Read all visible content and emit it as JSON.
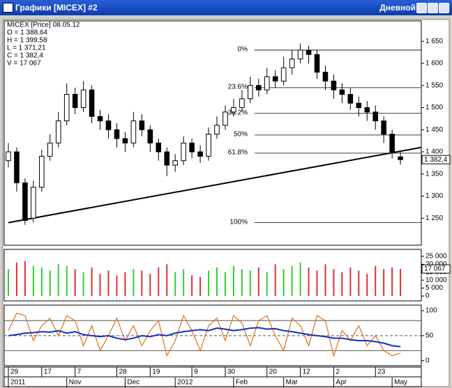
{
  "window": {
    "title": "Графики [MICEX] #2",
    "timeframe": "Дневной"
  },
  "chart_data": [
    {
      "type": "candlestick",
      "info": [
        "MICEX [Price] 08.05.12",
        "O = 1 388,64",
        "H = 1 399,58",
        "L = 1 371,21",
        "C = 1 382,4",
        "V = 17 067"
      ],
      "open": [
        1380,
        1400,
        1330,
        1250,
        1320,
        1390,
        1420,
        1470,
        1530,
        1500,
        1540,
        1480,
        1470,
        1450,
        1430,
        1420,
        1470,
        1450,
        1420,
        1400,
        1370,
        1380,
        1420,
        1400,
        1390,
        1440,
        1460,
        1490,
        1500,
        1520,
        1550,
        1540,
        1570,
        1560,
        1590,
        1610,
        1630,
        1620,
        1580,
        1560,
        1540,
        1530,
        1510,
        1500,
        1490,
        1470,
        1440,
        1388.64
      ],
      "high": [
        1420,
        1410,
        1340,
        1335,
        1405,
        1440,
        1490,
        1555,
        1545,
        1560,
        1550,
        1495,
        1485,
        1465,
        1445,
        1490,
        1485,
        1460,
        1430,
        1410,
        1395,
        1435,
        1430,
        1415,
        1455,
        1480,
        1505,
        1520,
        1540,
        1570,
        1565,
        1590,
        1585,
        1615,
        1630,
        1645,
        1640,
        1630,
        1595,
        1575,
        1555,
        1545,
        1525,
        1515,
        1505,
        1480,
        1450,
        1399.58
      ],
      "low": [
        1365,
        1310,
        1235,
        1240,
        1310,
        1380,
        1410,
        1460,
        1485,
        1490,
        1465,
        1450,
        1430,
        1410,
        1400,
        1410,
        1435,
        1400,
        1380,
        1345,
        1355,
        1370,
        1385,
        1375,
        1380,
        1430,
        1450,
        1480,
        1490,
        1510,
        1525,
        1530,
        1545,
        1550,
        1575,
        1600,
        1600,
        1565,
        1540,
        1520,
        1510,
        1495,
        1480,
        1470,
        1450,
        1420,
        1385,
        1371.21
      ],
      "close": [
        1400,
        1330,
        1245,
        1320,
        1390,
        1420,
        1470,
        1530,
        1500,
        1540,
        1480,
        1470,
        1450,
        1430,
        1420,
        1470,
        1450,
        1420,
        1400,
        1370,
        1380,
        1420,
        1400,
        1390,
        1440,
        1460,
        1490,
        1500,
        1520,
        1550,
        1540,
        1570,
        1560,
        1590,
        1610,
        1630,
        1620,
        1580,
        1560,
        1540,
        1530,
        1510,
        1500,
        1490,
        1470,
        1440,
        1400,
        1382.4
      ],
      "up_color": "#ffffff",
      "down_color": "#000000",
      "xlim": [
        -0.5,
        49.5
      ],
      "ylim": [
        1189,
        1696
      ],
      "yticks": [
        {
          "value": 1650,
          "label": "1 650"
        },
        {
          "value": 1600,
          "label": "1 600"
        },
        {
          "value": 1550,
          "label": "1 550"
        },
        {
          "value": 1500,
          "label": "1 500"
        },
        {
          "value": 1450,
          "label": "1 450"
        },
        {
          "value": 1400,
          "label": "1 400"
        },
        {
          "value": 1350,
          "label": "1 350"
        },
        {
          "value": 1300,
          "label": "1 300"
        },
        {
          "value": 1250,
          "label": "1 250"
        }
      ],
      "last_label": {
        "value": 1382.4,
        "label": "1 382,4"
      },
      "fib": [
        {
          "value": 1630,
          "label": "0%"
        },
        {
          "value": 1545,
          "label": "23.6%"
        },
        {
          "value": 1487,
          "label": "38.2%"
        },
        {
          "value": 1438,
          "label": "50%"
        },
        {
          "value": 1397,
          "label": "61.8%"
        },
        {
          "value": 1240,
          "label": "100%"
        }
      ],
      "trendline": {
        "x": [
          0,
          49.5
        ],
        "y": [
          1240,
          1410
        ],
        "color": "#000000"
      }
    },
    {
      "type": "volume",
      "values": [
        17000,
        21000,
        22000,
        19000,
        18000,
        16000,
        20000,
        19000,
        17000,
        15000,
        18000,
        14000,
        16000,
        13000,
        15000,
        17000,
        16000,
        14000,
        18000,
        20000,
        15000,
        17000,
        13000,
        12000,
        16000,
        18000,
        15000,
        19000,
        17000,
        16000,
        18000,
        15000,
        20000,
        17000,
        19000,
        21000,
        18000,
        16000,
        20000,
        17000,
        15000,
        18000,
        16000,
        14000,
        19000,
        17000,
        18000,
        17067
      ],
      "up_color": "#33cc33",
      "down_color": "#e03030",
      "xlim": [
        -0.5,
        49.5
      ],
      "ylim": [
        -3070,
        29390
      ],
      "yticks": [
        {
          "value": 25000,
          "label": "25 000"
        },
        {
          "value": 20000,
          "label": "20 000"
        },
        {
          "value": 15000,
          "label": "15 000"
        },
        {
          "value": 10000,
          "label": "10 000"
        },
        {
          "value": 5000,
          "label": "5 000"
        },
        0
      ],
      "last_label": {
        "value": 17067,
        "label": "17 067"
      }
    },
    {
      "type": "line",
      "series": [
        {
          "color": "#e0701a",
          "values": [
            60,
            95,
            90,
            40,
            70,
            85,
            50,
            90,
            80,
            30,
            70,
            20,
            50,
            85,
            40,
            70,
            30,
            60,
            80,
            10,
            40,
            90,
            60,
            20,
            70,
            85,
            40,
            90,
            75,
            30,
            80,
            90,
            50,
            20,
            85,
            70,
            30,
            90,
            80,
            10,
            60,
            40,
            70,
            30,
            50,
            20,
            10,
            15
          ]
        },
        {
          "color": "#1030c0",
          "values": [
            50,
            52,
            55,
            56,
            58,
            57,
            60,
            55,
            58,
            52,
            50,
            48,
            50,
            45,
            42,
            45,
            50,
            48,
            52,
            50,
            55,
            58,
            60,
            62,
            60,
            65,
            63,
            60,
            62,
            65,
            66,
            63,
            64,
            60,
            58,
            55,
            52,
            50,
            48,
            45,
            45,
            42,
            40,
            40,
            38,
            35,
            30,
            28
          ]
        }
      ],
      "levels": [
        80,
        50,
        20
      ],
      "xlim": [
        -0.5,
        49.5
      ],
      "ylim": [
        -10,
        111
      ],
      "yticks": [
        100,
        50,
        0
      ],
      "xticks": [
        {
          "value": 0,
          "label": "29"
        },
        {
          "value": 4,
          "label": "17"
        },
        {
          "value": 8,
          "label": "7"
        },
        {
          "value": 13,
          "label": "28"
        },
        {
          "value": 17,
          "label": "19"
        },
        {
          "value": 22,
          "label": "9"
        },
        {
          "value": 26,
          "label": "30"
        },
        {
          "value": 31,
          "label": "20"
        },
        {
          "value": 35,
          "label": "12"
        },
        {
          "value": 39,
          "label": "2"
        },
        {
          "value": 44,
          "label": "23"
        }
      ],
      "xticks_2": [
        {
          "value": 0,
          "label": "2011"
        },
        {
          "value": 7,
          "label": "Nov"
        },
        {
          "value": 14,
          "label": "Dec"
        },
        {
          "value": 20,
          "label": "2012"
        },
        {
          "value": 27,
          "label": "Feb"
        },
        {
          "value": 33,
          "label": "Mar"
        },
        {
          "value": 39,
          "label": "Apr"
        },
        {
          "value": 46,
          "label": "May"
        }
      ]
    }
  ]
}
